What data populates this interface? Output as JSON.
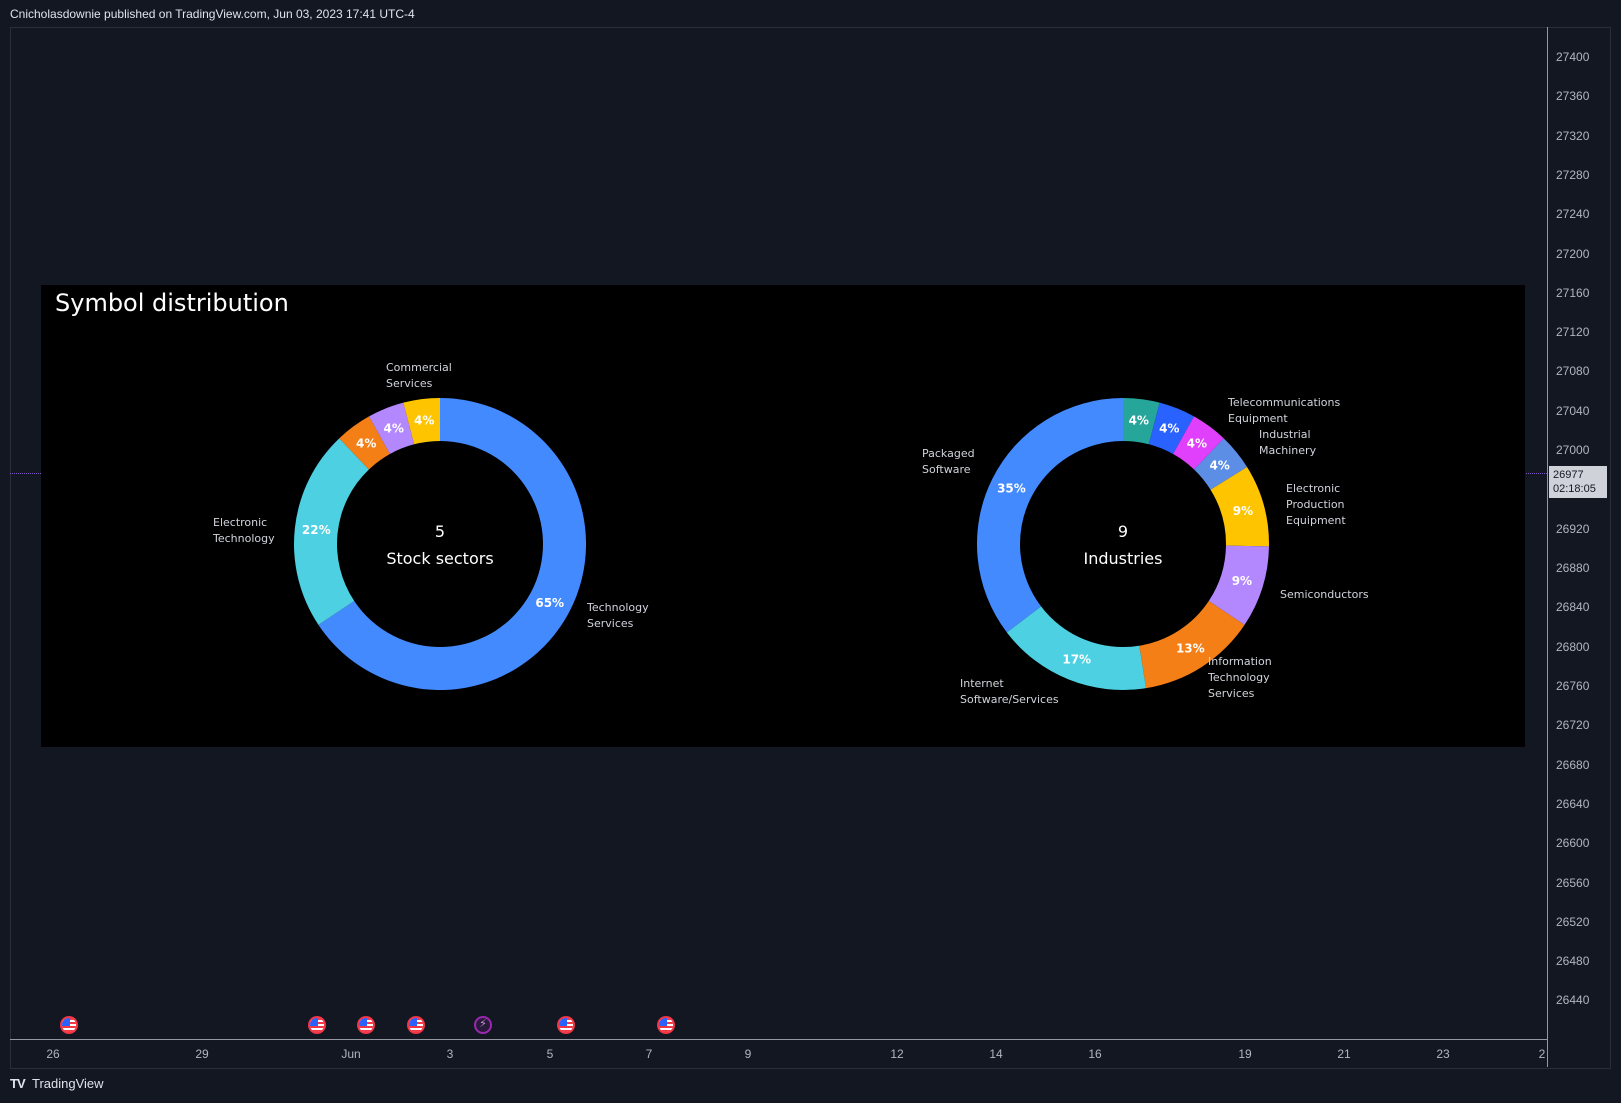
{
  "header": {
    "text": "Cnicholasdownie published on TradingView.com, Jun 03, 2023 17:41 UTC-4"
  },
  "price_axis": {
    "ticks": [
      "27400",
      "27360",
      "27320",
      "27280",
      "27240",
      "27200",
      "27160",
      "27120",
      "27080",
      "27040",
      "27000",
      "26920",
      "26880",
      "26840",
      "26800",
      "26760",
      "26720",
      "26680",
      "26640",
      "26600",
      "26560",
      "26520",
      "26480",
      "26440"
    ],
    "values": [
      27400,
      27360,
      27320,
      27280,
      27240,
      27200,
      27160,
      27120,
      27080,
      27040,
      27000,
      26920,
      26880,
      26840,
      26800,
      26760,
      26720,
      26680,
      26640,
      26600,
      26560,
      26520,
      26480,
      26440
    ],
    "current_price": "26977",
    "countdown": "02:18:05",
    "current_value": 26977
  },
  "time_axis": {
    "labels": [
      "26",
      "29",
      "Jun",
      "3",
      "5",
      "7",
      "9",
      "12",
      "14",
      "16",
      "19",
      "21",
      "23",
      "2"
    ]
  },
  "events": [
    {
      "type": "flag-icon"
    },
    {
      "type": "flag-icon"
    },
    {
      "type": "flag-icon"
    },
    {
      "type": "flag-icon"
    },
    {
      "type": "flash-icon"
    },
    {
      "type": "flag-icon"
    },
    {
      "type": "flag-icon"
    }
  ],
  "footer": {
    "logo": "TV",
    "brand": "TradingView"
  },
  "panel": {
    "title": "Symbol distribution"
  },
  "chart_data": [
    {
      "type": "pie",
      "title": "Stock sectors",
      "center_count": "5",
      "center_label": "Stock sectors",
      "slices": [
        {
          "label": "Technology Services",
          "value": 65,
          "display": "65%",
          "color": "#448aff"
        },
        {
          "label": "Electronic Technology",
          "value": 22,
          "display": "22%",
          "color": "#4dd0e1"
        },
        {
          "label": "",
          "value": 4,
          "display": "4%",
          "color": "#f57f17"
        },
        {
          "label": "",
          "value": 4,
          "display": "4%",
          "color": "#b388ff"
        },
        {
          "label": "Commercial Services",
          "value": 4,
          "display": "4%",
          "color": "#ffc400"
        }
      ]
    },
    {
      "type": "pie",
      "title": "Industries",
      "center_count": "9",
      "center_label": "Industries",
      "slices": [
        {
          "label": "",
          "value": 4,
          "display": "4%",
          "color": "#26a69a"
        },
        {
          "label": "Telecommunications Equipment",
          "value": 4,
          "display": "4%",
          "color": "#2962ff"
        },
        {
          "label": "Industrial Machinery",
          "value": 4,
          "display": "4%",
          "color": "#e040fb"
        },
        {
          "label": "",
          "value": 4,
          "display": "4%",
          "color": "#5c8ee6"
        },
        {
          "label": "Electronic Production Equipment",
          "value": 9,
          "display": "9%",
          "color": "#ffc400"
        },
        {
          "label": "Semiconductors",
          "value": 9,
          "display": "9%",
          "color": "#b388ff"
        },
        {
          "label": "Information Technology Services",
          "value": 13,
          "display": "13%",
          "color": "#f57f17"
        },
        {
          "label": "Internet Software/Services",
          "value": 17,
          "display": "17%",
          "color": "#4dd0e1"
        },
        {
          "label": "Packaged Software",
          "value": 35,
          "display": "35%",
          "color": "#448aff"
        }
      ]
    }
  ]
}
